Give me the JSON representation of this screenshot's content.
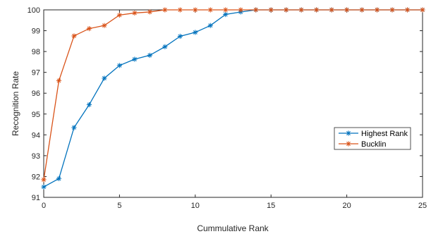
{
  "chart_data": {
    "type": "line",
    "xlabel": "Cummulative Rank",
    "ylabel": "Recognition Rate",
    "xlim": [
      0,
      25
    ],
    "ylim": [
      91,
      100
    ],
    "xticks": [
      "0",
      "5",
      "10",
      "15",
      "20",
      "25"
    ],
    "yticks": [
      "91",
      "92",
      "93",
      "94",
      "95",
      "96",
      "97",
      "98",
      "99",
      "100"
    ],
    "grid": false,
    "legend_position": "right",
    "x": [
      0,
      1,
      2,
      3,
      4,
      5,
      6,
      7,
      8,
      9,
      10,
      11,
      12,
      13,
      14,
      15,
      16,
      17,
      18,
      19,
      20,
      21,
      22,
      23,
      24,
      25
    ],
    "series": [
      {
        "name": "Highest Rank",
        "color": "#0072BD",
        "values": [
          91.5,
          91.9,
          94.35,
          95.45,
          96.72,
          97.33,
          97.63,
          97.82,
          98.23,
          98.73,
          98.92,
          99.25,
          99.78,
          99.9,
          100,
          100,
          100,
          100,
          100,
          100,
          100,
          100,
          100,
          100,
          100,
          100
        ]
      },
      {
        "name": "Bucklin",
        "color": "#D95319",
        "values": [
          91.85,
          96.6,
          98.75,
          99.1,
          99.25,
          99.75,
          99.85,
          99.9,
          100,
          100,
          100,
          100,
          100,
          100,
          100,
          100,
          100,
          100,
          100,
          100,
          100,
          100,
          100,
          100,
          100,
          100
        ]
      }
    ]
  }
}
